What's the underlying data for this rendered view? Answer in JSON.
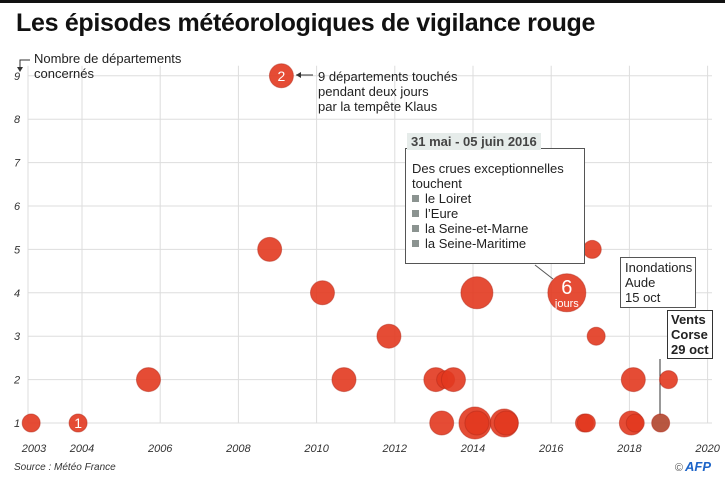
{
  "chart_data": {
    "type": "scatter",
    "title": "Les épisodes météorologiques de vigilance rouge",
    "ylabel": "Nombre de départements concernés",
    "xlabel": "",
    "xlim": [
      2003,
      2020
    ],
    "ylim": [
      1,
      9
    ],
    "x_ticks": [
      "2003",
      "2004",
      "2006",
      "2008",
      "2010",
      "2012",
      "2014",
      "2016",
      "2018",
      "2020"
    ],
    "y_ticks": [
      "1",
      "2",
      "3",
      "4",
      "5",
      "6",
      "7",
      "8",
      "9"
    ],
    "grid": true,
    "size_encodes": "durée en jours",
    "points": [
      {
        "x": 2002.7,
        "y": 1,
        "days": 1
      },
      {
        "x": 2003.9,
        "y": 1,
        "days": 1,
        "label": "1"
      },
      {
        "x": 2005.7,
        "y": 2,
        "days": 2
      },
      {
        "x": 2008.8,
        "y": 5,
        "days": 2
      },
      {
        "x": 2009.1,
        "y": 9,
        "days": 2,
        "label": "2"
      },
      {
        "x": 2010.15,
        "y": 4,
        "days": 2
      },
      {
        "x": 2010.7,
        "y": 2,
        "days": 2
      },
      {
        "x": 2011.85,
        "y": 3,
        "days": 2
      },
      {
        "x": 2013.05,
        "y": 2,
        "days": 2
      },
      {
        "x": 2013.3,
        "y": 2,
        "days": 1
      },
      {
        "x": 2013.5,
        "y": 2,
        "days": 2
      },
      {
        "x": 2013.2,
        "y": 1,
        "days": 2
      },
      {
        "x": 2014.1,
        "y": 4,
        "days": 4
      },
      {
        "x": 2014.05,
        "y": 1,
        "days": 4
      },
      {
        "x": 2014.1,
        "y": 1,
        "days": 2
      },
      {
        "x": 2014.8,
        "y": 1,
        "days": 3
      },
      {
        "x": 2014.85,
        "y": 1,
        "days": 2
      },
      {
        "x": 2016.4,
        "y": 4,
        "days": 6,
        "label": "6",
        "sublabel": "jours"
      },
      {
        "x": 2017.05,
        "y": 5,
        "days": 1
      },
      {
        "x": 2017.15,
        "y": 3,
        "days": 1
      },
      {
        "x": 2016.85,
        "y": 1,
        "days": 1
      },
      {
        "x": 2016.9,
        "y": 1,
        "days": 1
      },
      {
        "x": 2018.1,
        "y": 2,
        "days": 2
      },
      {
        "x": 2018.05,
        "y": 1,
        "days": 2
      },
      {
        "x": 2018.15,
        "y": 1,
        "days": 1
      },
      {
        "x": 2018.8,
        "y": 1,
        "days": 1,
        "highlight": true
      },
      {
        "x": 2019.0,
        "y": 2,
        "days": 1
      }
    ],
    "colors": {
      "bubble": "#e2391f",
      "highlight": "#b0452c",
      "grid": "#dddddd"
    }
  },
  "annotations": {
    "klaus": [
      "9 départements touchés",
      "pendant deux jours",
      "par la tempête Klaus"
    ],
    "crues_date": "31 mai - 05 juin 2016",
    "crues_text": [
      "Des crues exceptionnelles",
      "touchent"
    ],
    "crues_items": [
      "le Loiret",
      "l’Eure",
      "la Seine-et-Marne",
      "la Seine-Maritime"
    ],
    "aude": [
      "Inondations",
      "Aude",
      "15 oct"
    ],
    "corse": [
      "Vents",
      "Corse",
      "29 oct"
    ]
  },
  "source": "Source : Météo France",
  "credit": "AFP",
  "credit_symbol": "©"
}
